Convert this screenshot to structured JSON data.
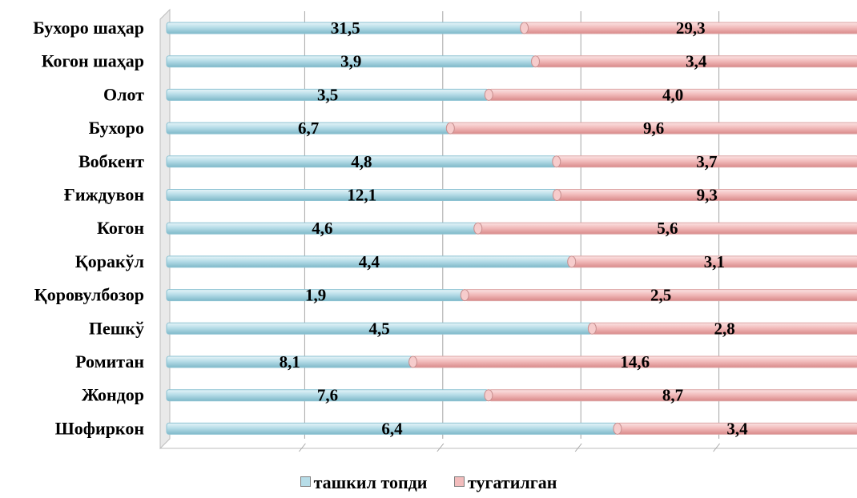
{
  "chart_data": {
    "type": "bar",
    "orientation": "horizontal",
    "stacked": "100%",
    "categories": [
      "Бухоро шаҳар",
      "Когон шаҳар",
      "Олот",
      "Бухоро",
      "Вобкент",
      "Ғиждувон",
      "Когон",
      "Қоракўл",
      "Қоровулбозор",
      "Пешкў",
      "Ромитан",
      "Жондор",
      "Шофиркон"
    ],
    "series": [
      {
        "name": "ташкил топди",
        "values": [
          31.5,
          3.9,
          3.5,
          6.7,
          4.8,
          12.1,
          4.6,
          4.4,
          1.9,
          4.5,
          8.1,
          7.6,
          6.4
        ],
        "labels": [
          "31,5",
          "3,9",
          "3,5",
          "6,7",
          "4,8",
          "12,1",
          "4,6",
          "4,4",
          "1,9",
          "4,5",
          "8,1",
          "7,6",
          "6,4"
        ],
        "color": "#b7dde8"
      },
      {
        "name": "тугатилган",
        "values": [
          29.3,
          3.4,
          4.0,
          9.6,
          3.7,
          9.3,
          5.6,
          3.1,
          2.5,
          2.8,
          14.6,
          8.7,
          3.4
        ],
        "labels": [
          "29,3",
          "3,4",
          "4,0",
          "9,6",
          "3,7",
          "9,3",
          "5,6",
          "3,1",
          "2,5",
          "2,8",
          "14,6",
          "8,7",
          "3,4"
        ],
        "color": "#f2bcbc"
      }
    ],
    "xlim": [
      0,
      1
    ],
    "grid": true,
    "legend": "bottom"
  }
}
